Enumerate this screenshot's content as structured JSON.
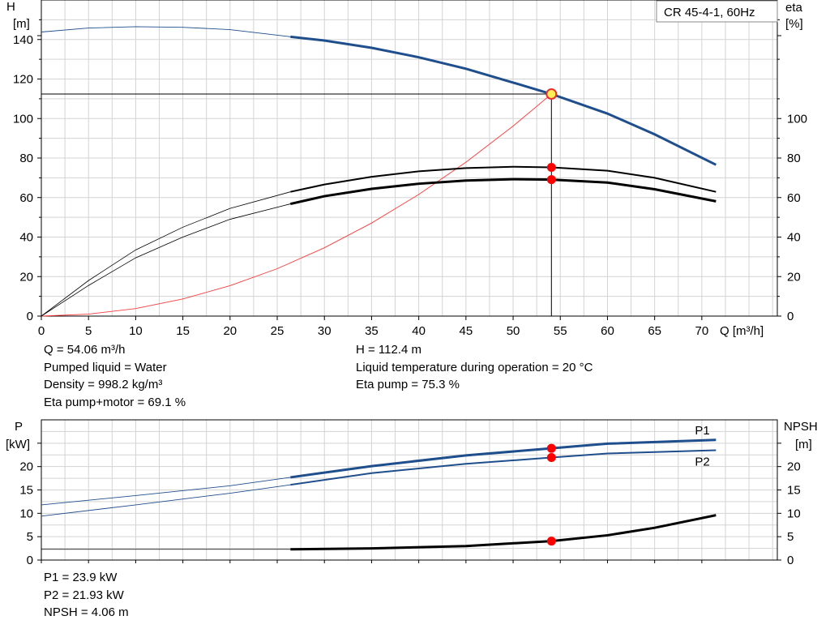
{
  "chart_data": [
    {
      "type": "line",
      "title": "CR 45-4-1, 60Hz",
      "xlabel": "Q [m³/h]",
      "ylabel_left": [
        "H",
        "[m]"
      ],
      "ylabel_right": [
        "eta",
        "[%]"
      ],
      "xlim": [
        0,
        78
      ],
      "ylim": [
        0,
        160
      ],
      "x_ticks": [
        0,
        5,
        10,
        15,
        20,
        25,
        30,
        35,
        40,
        45,
        50,
        55,
        60,
        65,
        70
      ],
      "y_ticks_left": [
        0,
        20,
        40,
        60,
        80,
        100,
        120,
        140
      ],
      "y_ticks_right": [
        0,
        20,
        40,
        60,
        80,
        100
      ],
      "grid": true,
      "colors": {
        "head": "#1f4e8c",
        "efficiency": "#000000",
        "system": "#ff3b3b",
        "marker": "#ff0000",
        "op_marker": "#ffee55"
      },
      "series": [
        {
          "key": "head",
          "x": [
            0,
            5,
            10,
            15,
            20,
            26.4,
            30,
            35,
            40,
            45,
            50,
            54.06,
            60,
            65,
            71.5
          ],
          "y": [
            143.8,
            145.8,
            146.5,
            146.2,
            145.0,
            141.4,
            139.5,
            135.8,
            131.0,
            125.2,
            118.2,
            112.4,
            102.5,
            92.0,
            76.6
          ]
        },
        {
          "key": "eta_pump",
          "x": [
            0,
            5,
            10,
            15,
            20,
            26.4,
            30,
            35,
            40,
            45,
            50,
            54.06,
            60,
            65,
            71.5
          ],
          "y": [
            0,
            18,
            33.5,
            45,
            54.5,
            62.9,
            66.6,
            70.5,
            73.3,
            74.9,
            75.6,
            75.3,
            73.6,
            70.0,
            62.9
          ]
        },
        {
          "key": "eta_total",
          "x": [
            0,
            5,
            10,
            15,
            20,
            26.4,
            30,
            35,
            40,
            45,
            50,
            54.06,
            60,
            65,
            71.5
          ],
          "y": [
            0,
            15.5,
            29.5,
            40,
            49,
            56.8,
            60.7,
            64.4,
            67.0,
            68.6,
            69.3,
            69.1,
            67.6,
            64.2,
            58.1
          ]
        },
        {
          "key": "system",
          "x": [
            0,
            5,
            10,
            15,
            20,
            25,
            30,
            35,
            40,
            45,
            50,
            54.06
          ],
          "y": [
            0,
            1.0,
            3.8,
            8.7,
            15.4,
            24.0,
            34.6,
            47.1,
            61.6,
            77.9,
            96.2,
            112.4
          ]
        }
      ],
      "operating_point": {
        "Q": 54.06,
        "H": 112.4,
        "eta_pump": 75.3,
        "eta_total": 69.1
      }
    },
    {
      "type": "line",
      "xlim": [
        0,
        78
      ],
      "ylim": [
        0,
        30
      ],
      "ylabel_left": [
        "P",
        "[kW]"
      ],
      "ylabel_right": [
        "NPSH",
        "[m]"
      ],
      "y_ticks_left": [
        0,
        5,
        10,
        15,
        20
      ],
      "y_ticks_right": [
        0,
        5,
        10,
        15,
        20
      ],
      "grid": true,
      "series": [
        {
          "key": "P1",
          "name": "P1",
          "x": [
            0,
            10,
            20,
            26.4,
            35,
            45,
            54.06,
            60,
            71.5
          ],
          "y": [
            11.8,
            13.8,
            15.9,
            17.7,
            20.1,
            22.4,
            23.9,
            24.9,
            25.7
          ]
        },
        {
          "key": "P2",
          "name": "P2",
          "x": [
            0,
            10,
            20,
            26.4,
            35,
            45,
            54.06,
            60,
            71.5
          ],
          "y": [
            9.4,
            11.8,
            14.3,
            16.1,
            18.6,
            20.6,
            21.93,
            22.8,
            23.5
          ]
        },
        {
          "key": "NPSH",
          "x": [
            0,
            26.4,
            35,
            45,
            54.06,
            60,
            65,
            71.5
          ],
          "y": [
            2.3,
            2.3,
            2.5,
            3.0,
            4.06,
            5.3,
            6.9,
            9.6
          ]
        }
      ],
      "operating_point": {
        "Q": 54.06,
        "P1": 23.9,
        "P2": 21.93,
        "NPSH": 4.06
      }
    }
  ],
  "info_top_left": [
    "Q = 54.06 m³/h",
    "Pumped liquid = Water",
    "Density = 998.2 kg/m³",
    "Eta pump+motor = 69.1 %"
  ],
  "info_top_right": [
    "H = 112.4 m",
    "Liquid temperature during operation = 20 °C",
    "Eta pump = 75.3 %"
  ],
  "info_bottom": [
    "P1 = 23.9 kW",
    "P2 = 21.93 kW",
    "NPSH = 4.06 m"
  ]
}
